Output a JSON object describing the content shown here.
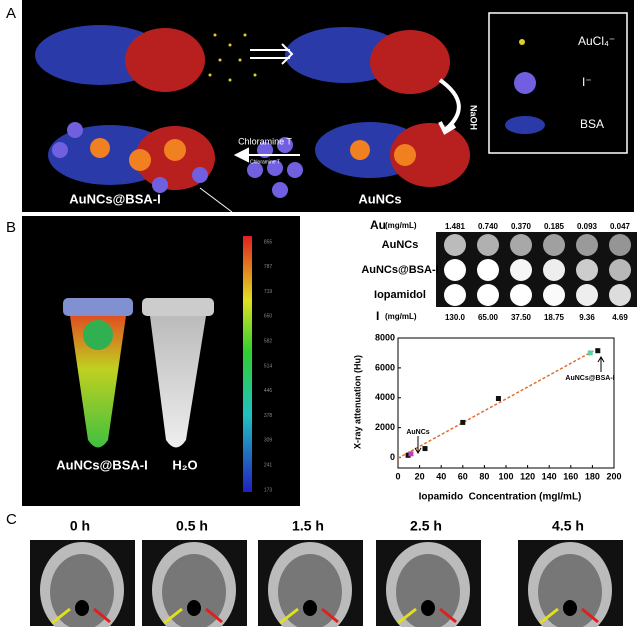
{
  "panel_a": {
    "label": "A",
    "legend": [
      "AuCl₄⁻",
      "I⁻",
      "BSA"
    ],
    "naoh": "NaOH",
    "chloramine": "Chloramine T",
    "chloramine_small": "Chloramine T",
    "product": "AuNCs@BSA-I",
    "intermediate": "AuNCs"
  },
  "panel_b": {
    "label": "B",
    "tube_labels": [
      "AuNCs@BSA-I",
      "H₂O"
    ],
    "colorbar": [
      "855",
      "787",
      "719",
      "650",
      "582",
      "514",
      "446",
      "378",
      "309",
      "241",
      "173"
    ],
    "table": {
      "au_header": "Au",
      "au_unit": "(mg/mL)",
      "au_values": [
        "1.481",
        "0.740",
        "0.370",
        "0.185",
        "0.093",
        "0.047"
      ],
      "rows": [
        "AuNCs",
        "AuNCs@BSA-I",
        "Iopamidol"
      ],
      "i_header": "I",
      "i_unit": "(mg/mL)",
      "i_values": [
        "130.0",
        "65.00",
        "37.50",
        "18.75",
        "9.36",
        "4.69"
      ]
    }
  },
  "chart_data": {
    "type": "scatter",
    "x_label": "Iopamido  Concentration (mgI/mL)",
    "y_label": "X-ray attenuation (Hu)",
    "xlim": [
      0,
      200
    ],
    "ylim": [
      -700,
      8000
    ],
    "xticks": [
      0,
      20,
      40,
      60,
      80,
      100,
      120,
      140,
      160,
      180,
      200
    ],
    "yticks": [
      0,
      2000,
      4000,
      6000,
      8000
    ],
    "series": [
      {
        "color": "#111111",
        "x": [
          9.36,
          25,
          60,
          93,
          185
        ],
        "values": [
          150,
          600,
          2350,
          3950,
          7150
        ]
      },
      {
        "color": "#c040c0",
        "x": [
          12
        ],
        "values": [
          250
        ]
      },
      {
        "color": "#60d0a0",
        "x": [
          178
        ],
        "values": [
          7000
        ]
      }
    ],
    "fit": {
      "color": "#e07030",
      "x": [
        0,
        185
      ],
      "values": [
        -50,
        7300
      ]
    },
    "annotations": [
      "AuNCs",
      "AuNCs@BSA-I"
    ]
  },
  "panel_c": {
    "label": "C",
    "times": [
      "0 h",
      "0.5 h",
      "1.5 h",
      "2.5 h",
      "4.5 h"
    ]
  }
}
